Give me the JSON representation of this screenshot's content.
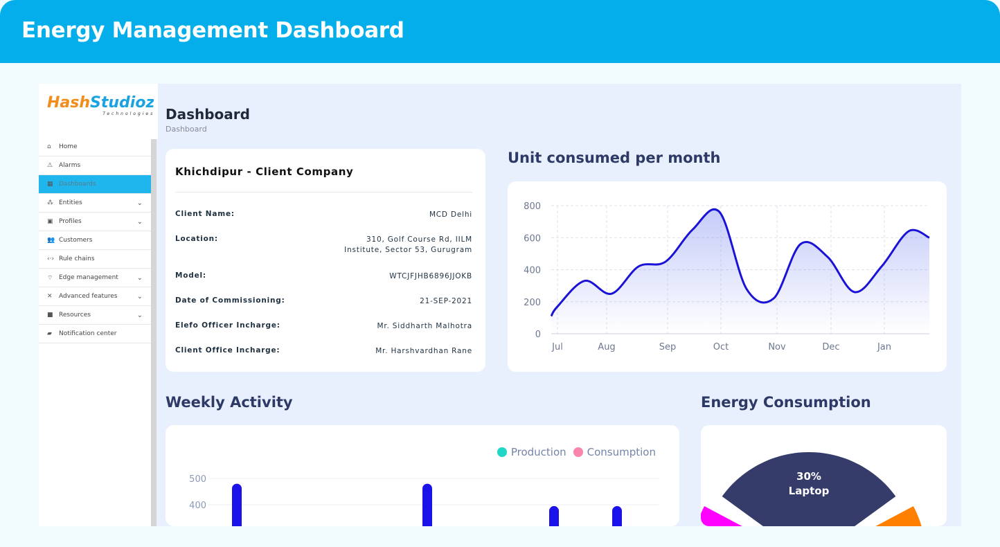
{
  "header": {
    "title": "Energy Management Dashboard"
  },
  "logo": {
    "text1": "Hash",
    "text2": "Studioz",
    "sub": "Technologies"
  },
  "sidebar": {
    "items": [
      {
        "label": "Home",
        "icon": "home-icon",
        "glyph": "⌂",
        "expandable": false,
        "active": false
      },
      {
        "label": "Alarms",
        "icon": "warning-icon",
        "glyph": "⚠",
        "expandable": false,
        "active": false
      },
      {
        "label": "Dashboards",
        "icon": "dashboard-icon",
        "glyph": "▦",
        "expandable": false,
        "active": true
      },
      {
        "label": "Entities",
        "icon": "entities-icon",
        "glyph": "⁂",
        "expandable": true,
        "active": false
      },
      {
        "label": "Profiles",
        "icon": "profiles-icon",
        "glyph": "▣",
        "expandable": true,
        "active": false
      },
      {
        "label": "Customers",
        "icon": "customers-icon",
        "glyph": "👥",
        "expandable": false,
        "active": false
      },
      {
        "label": "Rule chains",
        "icon": "code-icon",
        "glyph": "‹·›",
        "expandable": false,
        "active": false
      },
      {
        "label": "Edge management",
        "icon": "antenna-icon",
        "glyph": "⌔",
        "expandable": true,
        "active": false
      },
      {
        "label": "Advanced features",
        "icon": "tools-icon",
        "glyph": "✕",
        "expandable": true,
        "active": false
      },
      {
        "label": "Resources",
        "icon": "folder-icon",
        "glyph": "■",
        "expandable": true,
        "active": false
      },
      {
        "label": "Notification center",
        "icon": "notification-icon",
        "glyph": "▰",
        "expandable": false,
        "active": false
      }
    ]
  },
  "page": {
    "title": "Dashboard",
    "breadcrumb": "Dashboard"
  },
  "info": {
    "title": "Khichdipur - Client Company",
    "rows": [
      {
        "label": "Client Name:",
        "value": "MCD Delhi"
      },
      {
        "label": "Location:",
        "value": "310, Golf Course Rd, IILM Institute, Sector 53, Gurugram"
      },
      {
        "label": "Model:",
        "value": "WTCJFJHB6896JJOKB"
      },
      {
        "label": "Date of Commissioning:",
        "value": "21-SEP-2021"
      },
      {
        "label": "Elefo Officer Incharge:",
        "value": "Mr. Siddharth Malhotra"
      },
      {
        "label": "Client Office Incharge:",
        "value": "Mr. Harshvardhan Rane"
      }
    ]
  },
  "sections": {
    "units": "Unit consumed per month",
    "weekly": "Weekly Activity",
    "energy": "Energy Consumption"
  },
  "chart_data": [
    {
      "type": "area",
      "title": "Unit consumed per month",
      "x": [
        "Jul",
        "",
        "Aug",
        "",
        "Sep",
        "",
        "Oct",
        "",
        "Nov",
        "",
        "Dec",
        "",
        "Jan",
        "",
        ""
      ],
      "values": [
        170,
        330,
        250,
        420,
        450,
        650,
        760,
        280,
        220,
        560,
        480,
        260,
        420,
        640,
        600
      ],
      "xticks": [
        "Jul",
        "Aug",
        "Sep",
        "Oct",
        "Nov",
        "Dec",
        "Jan"
      ],
      "yticks": [
        0,
        200,
        400,
        600,
        800
      ],
      "ylim": [
        0,
        800
      ],
      "grid": true,
      "color": "#1a12d6"
    },
    {
      "type": "bar",
      "title": "Weekly Activity",
      "legend": [
        {
          "name": "Production",
          "color": "#1ed7c6"
        },
        {
          "name": "Consumption",
          "color": "#f985aa"
        }
      ],
      "yticks": [
        400,
        500
      ],
      "values": [
        480,
        480,
        395,
        395
      ],
      "legend_position": "top-right",
      "color": "#1a12e8"
    },
    {
      "type": "pie",
      "title": "Energy Consumption",
      "slices": [
        {
          "label": "Laptop",
          "value": 30,
          "color": "#363c6a"
        },
        {
          "label": "",
          "value": 15,
          "color": "#ff7f00"
        },
        {
          "label": "",
          "value": null,
          "color": "#ff00ff"
        }
      ]
    }
  ]
}
